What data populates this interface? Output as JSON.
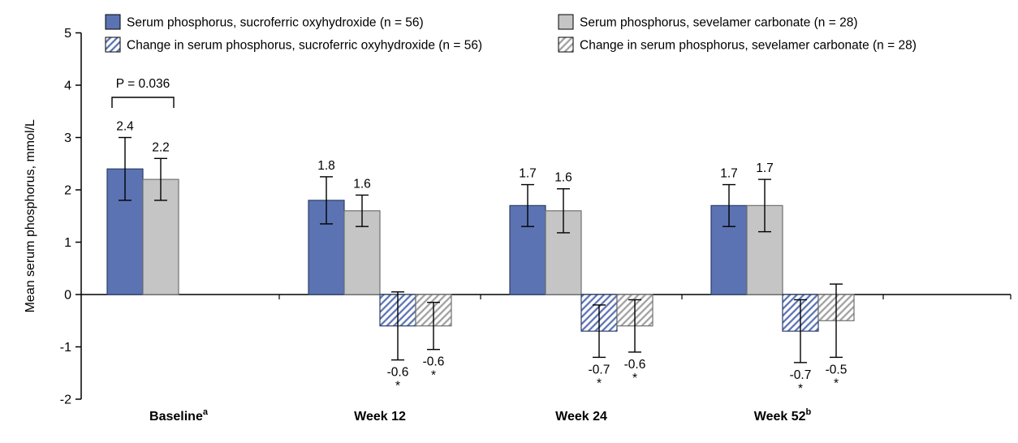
{
  "figure": {
    "background": "#ffffff"
  },
  "chart_data": {
    "type": "bar",
    "title": "",
    "ylabel": "Mean serum phosphorus, mmol/L",
    "xlabel": "",
    "ylim": [
      -2,
      5
    ],
    "yticks": [
      -2,
      -1,
      0,
      1,
      2,
      3,
      4,
      5
    ],
    "grid": "off",
    "legend_position": "top",
    "axis_color": "#000000",
    "error_bar_color": "#000000",
    "categories": [
      {
        "label": "Baseline",
        "superscript": "a"
      },
      {
        "label": "Week 12",
        "superscript": ""
      },
      {
        "label": "Week 24",
        "superscript": ""
      },
      {
        "label": "Week 52",
        "superscript": "b"
      }
    ],
    "series": [
      {
        "name": "Serum phosphorus, sucroferric oxyhydroxide (n = 56)",
        "pattern": "solid",
        "color": "#5b73b2",
        "border": "#2c3e66",
        "values": [
          2.4,
          1.8,
          1.7,
          1.7
        ],
        "errors": [
          0.6,
          0.45,
          0.4,
          0.4
        ],
        "labels": [
          "2.4",
          "1.8",
          "1.7",
          "1.7"
        ],
        "asterisks": [
          false,
          false,
          false,
          false
        ]
      },
      {
        "name": "Serum phosphorus, sevelamer carbonate (n = 28)",
        "pattern": "solid",
        "color": "#c5c5c5",
        "border": "#707070",
        "values": [
          2.2,
          1.6,
          1.6,
          1.7
        ],
        "errors": [
          0.4,
          0.3,
          0.42,
          0.5
        ],
        "labels": [
          "2.2",
          "1.6",
          "1.6",
          "1.7"
        ],
        "asterisks": [
          false,
          false,
          false,
          false
        ]
      },
      {
        "name": "Change in serum phosphorus, sucroferric oxyhydroxide (n = 56)",
        "pattern": "hatch",
        "color": "#5b73b2",
        "border": "#2c3e66",
        "values": [
          null,
          -0.6,
          -0.7,
          -0.7
        ],
        "errors": [
          null,
          0.65,
          0.5,
          0.6
        ],
        "labels": [
          "",
          "-0.6",
          "-0.7",
          "-0.7"
        ],
        "asterisks": [
          false,
          true,
          true,
          true
        ]
      },
      {
        "name": "Change in serum phosphorus, sevelamer carbonate (n = 28)",
        "pattern": "hatch",
        "color": "#a0a0a0",
        "border": "#707070",
        "values": [
          null,
          -0.6,
          -0.6,
          -0.5
        ],
        "errors": [
          null,
          0.45,
          0.5,
          0.7
        ],
        "labels": [
          "",
          "-0.6",
          "-0.6",
          "-0.5"
        ],
        "asterisks": [
          false,
          true,
          true,
          true
        ]
      }
    ],
    "annotation": {
      "text": "P = 0.036",
      "category": 0,
      "slots": [
        0,
        1
      ]
    }
  }
}
